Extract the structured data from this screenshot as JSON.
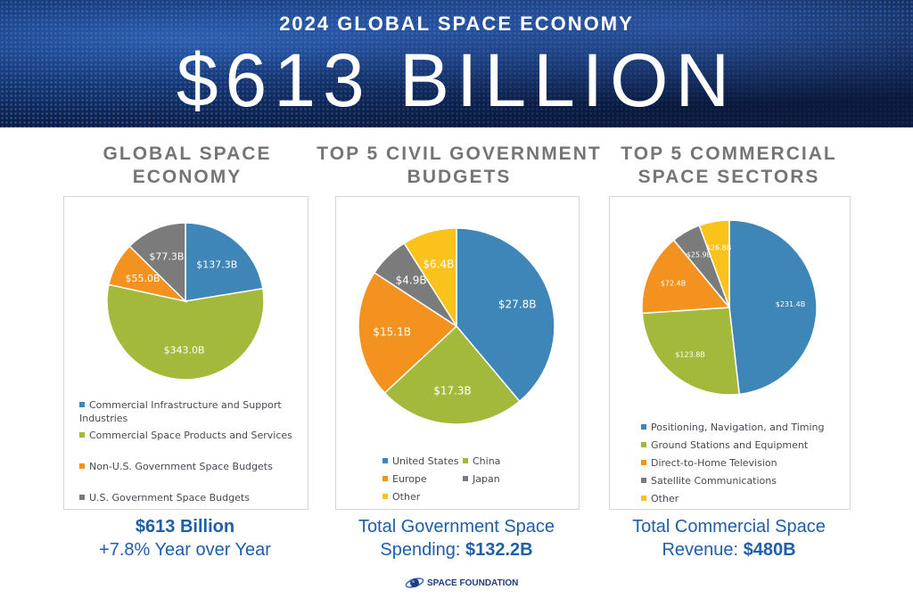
{
  "header": {
    "subtitle": "2024 GLOBAL SPACE ECONOMY",
    "title": "$613 BILLION"
  },
  "colors": {
    "blue": "#3f86b8",
    "green": "#a3b93c",
    "orange": "#f3921e",
    "gray": "#7b7b7b",
    "yellow": "#fbc21b",
    "footer_text": "#1f5ea8"
  },
  "chart_data": [
    {
      "type": "pie",
      "title": "GLOBAL SPACE ECONOMY",
      "categories": [
        "Commercial Infrastructure and Support Industries",
        "Commercial Space Products and Services",
        "Non-U.S. Government Space Budgets",
        "U.S. Government Space Budgets"
      ],
      "values": [
        137.3,
        343.0,
        55.0,
        77.3
      ],
      "labels": [
        "$137.3B",
        "$343.0B",
        "$55.0B",
        "$77.3B"
      ],
      "legend": "bottom",
      "footer": [
        "$613 Billion",
        "+7.8% Year over Year"
      ]
    },
    {
      "type": "pie",
      "title": "TOP 5 CIVIL GOVERNMENT BUDGETS",
      "categories": [
        "United States",
        "China",
        "Europe",
        "Japan",
        "Other"
      ],
      "values": [
        27.8,
        17.3,
        15.1,
        4.9,
        6.4
      ],
      "labels": [
        "$27.8B",
        "$17.3B",
        "$15.1B",
        "$4.9B",
        "$6.4B"
      ],
      "legend": "bottom",
      "footer": [
        "Total Government Space Spending: ",
        "$132.2B"
      ]
    },
    {
      "type": "pie",
      "title": "TOP 5 COMMERCIAL SPACE SECTORS",
      "categories": [
        "Positioning, Navigation, and Timing",
        "Ground Stations and Equipment",
        "Direct-to-Home Television",
        "Satellite Communications",
        "Other"
      ],
      "values": [
        231.4,
        123.8,
        72.4,
        25.9,
        26.8
      ],
      "labels": [
        "$231.4B",
        "$123.8B",
        "$72.4B",
        "$25.9B",
        "$26.8B"
      ],
      "legend": "bottom",
      "footer": [
        "Total Commercial Space Revenue: ",
        "$480B"
      ]
    }
  ],
  "logo": {
    "text": "SPACE FOUNDATION"
  }
}
